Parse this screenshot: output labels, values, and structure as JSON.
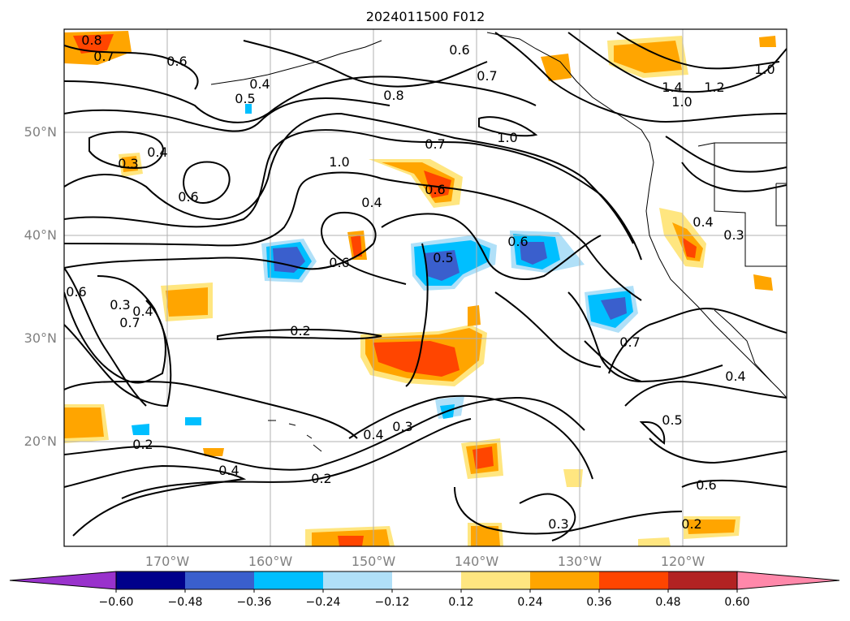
{
  "title": "2024011500 F012",
  "map": {
    "lat_ticks": [
      "50°N",
      "40°N",
      "30°N",
      "20°N"
    ],
    "lon_ticks": [
      "170°W",
      "160°W",
      "150°W",
      "140°W",
      "130°W",
      "120°W"
    ],
    "gridlines": true
  },
  "colorbar": {
    "levels": [
      "−0.60",
      "−0.48",
      "−0.36",
      "−0.24",
      "−0.12",
      "0.12",
      "0.24",
      "0.36",
      "0.48",
      "0.60"
    ],
    "colors": [
      "#9932cc",
      "#00008b",
      "#3a5fcd",
      "#00bfff",
      "#b0e0f8",
      "#ffffff",
      "#ffe680",
      "#ffa500",
      "#ff4500",
      "#b22222",
      "#ff88aa"
    ],
    "extend": "both"
  },
  "contour_labels": [
    "0.8",
    "0.7",
    "0.6",
    "0.4",
    "0.5",
    "0.6",
    "0.8",
    "0.7",
    "1.0",
    "1.4",
    "1.2",
    "1.0",
    "0.3",
    "0.4",
    "0.6",
    "1.0",
    "0.7",
    "1.0",
    "0.4",
    "0.6",
    "0.4",
    "0.3",
    "0.6",
    "0.5",
    "0.6",
    "0.7",
    "0.3",
    "0.4",
    "0.6",
    "0.2",
    "0.7",
    "0.4",
    "0.2",
    "0.4",
    "0.3",
    "0.5",
    "0.4",
    "0.2",
    "0.6",
    "0.3",
    "0.2"
  ]
}
